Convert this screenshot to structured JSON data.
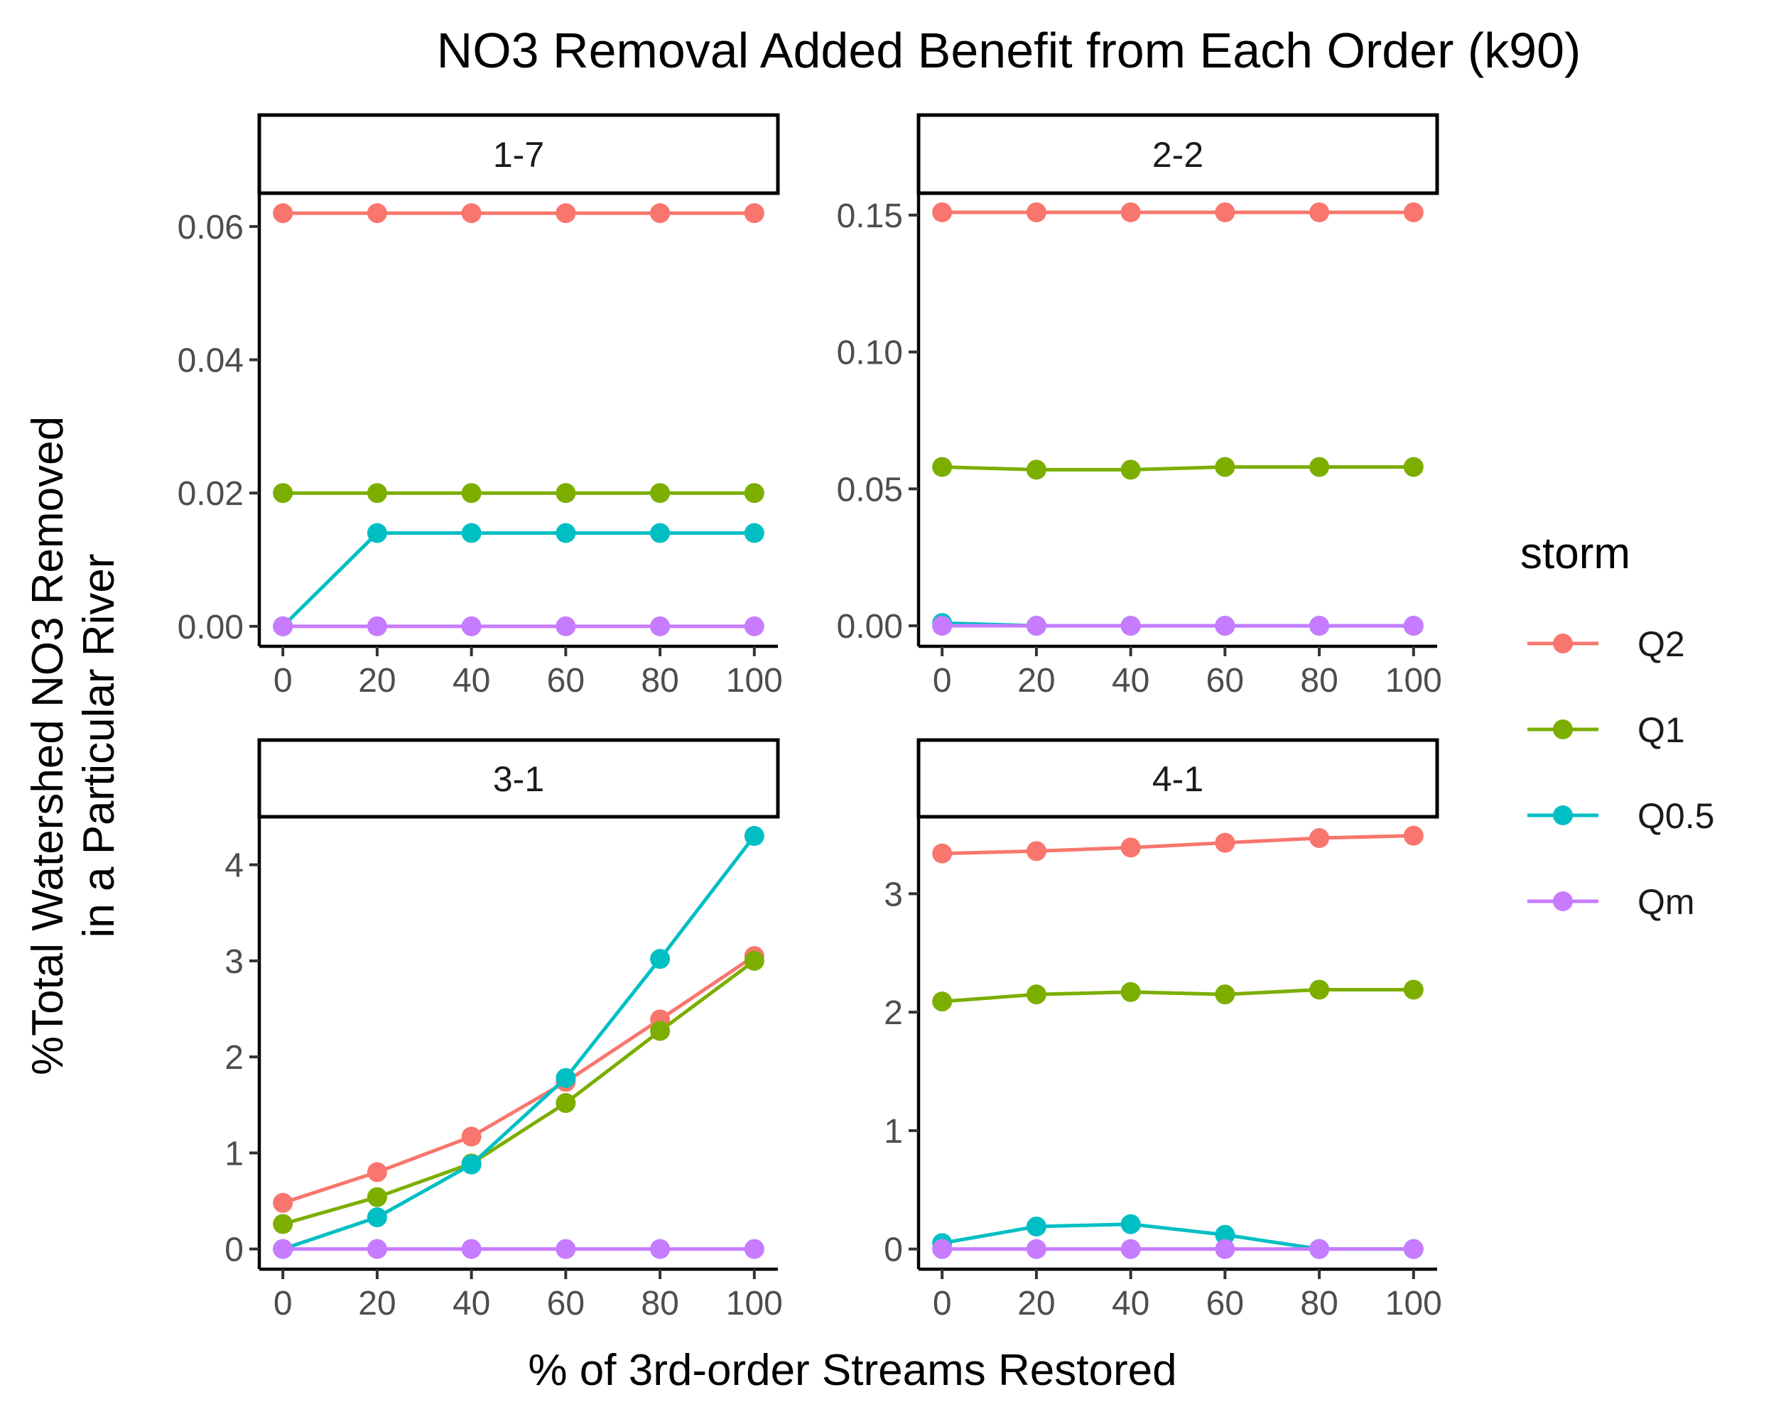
{
  "chart_data": {
    "type": "line",
    "title": "NO3 Removal Added Benefit from Each Order (k90)",
    "xlabel": "% of 3rd-order Streams Restored",
    "ylabel_lines": [
      "%Total Watershed NO3 Removed",
      "in a Particular River"
    ],
    "legend": {
      "title": "storm",
      "placement": "right",
      "entries": [
        {
          "name": "Q2",
          "color": "#F8766D"
        },
        {
          "name": "Q1",
          "color": "#7CAE00"
        },
        {
          "name": "Q0.5",
          "color": "#00BFC4"
        },
        {
          "name": "Qm",
          "color": "#C77CFF"
        }
      ]
    },
    "x": [
      0,
      20,
      40,
      60,
      80,
      100
    ],
    "x_tick_labels": [
      "0",
      "20",
      "40",
      "60",
      "80",
      "100"
    ],
    "xlim": [
      -5,
      105
    ],
    "grid": false,
    "panels": [
      {
        "strip": "1-7",
        "ylim": [
          -0.003,
          0.065
        ],
        "y_ticks": [
          0,
          0.02,
          0.04,
          0.06
        ],
        "y_tick_labels": [
          "0.00",
          "0.02",
          "0.04",
          "0.06"
        ],
        "series": [
          {
            "name": "Q2",
            "values": [
              0.062,
              0.062,
              0.062,
              0.062,
              0.062,
              0.062
            ]
          },
          {
            "name": "Q1",
            "values": [
              0.02,
              0.02,
              0.02,
              0.02,
              0.02,
              0.02
            ]
          },
          {
            "name": "Q0.5",
            "values": [
              0.0,
              0.014,
              0.014,
              0.014,
              0.014,
              0.014
            ]
          },
          {
            "name": "Qm",
            "values": [
              0,
              0,
              0,
              0,
              0,
              0
            ]
          }
        ]
      },
      {
        "strip": "2-2",
        "ylim": [
          -0.0075,
          0.158
        ],
        "y_ticks": [
          0,
          0.05,
          0.1,
          0.15
        ],
        "y_tick_labels": [
          "0.00",
          "0.05",
          "0.10",
          "0.15"
        ],
        "series": [
          {
            "name": "Q2",
            "values": [
              0.151,
              0.151,
              0.151,
              0.151,
              0.151,
              0.151
            ]
          },
          {
            "name": "Q1",
            "values": [
              0.058,
              0.057,
              0.057,
              0.058,
              0.058,
              0.058
            ]
          },
          {
            "name": "Q0.5",
            "values": [
              0.001,
              0.0,
              0.0,
              0.0,
              0.0,
              0.0
            ]
          },
          {
            "name": "Qm",
            "values": [
              0,
              0,
              0,
              0,
              0,
              0
            ]
          }
        ]
      },
      {
        "strip": "3-1",
        "ylim": [
          -0.21,
          4.5
        ],
        "y_ticks": [
          0,
          1,
          2,
          3,
          4
        ],
        "y_tick_labels": [
          "0",
          "1",
          "2",
          "3",
          "4"
        ],
        "series": [
          {
            "name": "Q2",
            "values": [
              0.48,
              0.8,
              1.17,
              1.74,
              2.39,
              3.05
            ]
          },
          {
            "name": "Q1",
            "values": [
              0.26,
              0.54,
              0.89,
              1.52,
              2.27,
              3.0
            ]
          },
          {
            "name": "Q0.5",
            "values": [
              0.0,
              0.33,
              0.88,
              1.78,
              3.02,
              4.3
            ]
          },
          {
            "name": "Qm",
            "values": [
              0,
              0,
              0,
              0,
              0,
              0
            ]
          }
        ]
      },
      {
        "strip": "4-1",
        "ylim": [
          -0.17,
          3.65
        ],
        "y_ticks": [
          0,
          1,
          2,
          3
        ],
        "y_tick_labels": [
          "0",
          "1",
          "2",
          "3"
        ],
        "series": [
          {
            "name": "Q2",
            "values": [
              3.34,
              3.36,
              3.39,
              3.43,
              3.47,
              3.49
            ]
          },
          {
            "name": "Q1",
            "values": [
              2.09,
              2.15,
              2.17,
              2.15,
              2.19,
              2.19
            ]
          },
          {
            "name": "Q0.5",
            "values": [
              0.05,
              0.19,
              0.21,
              0.12,
              0.0,
              0.0
            ]
          },
          {
            "name": "Qm",
            "values": [
              0,
              0,
              0,
              0,
              0,
              0
            ]
          }
        ]
      }
    ]
  }
}
